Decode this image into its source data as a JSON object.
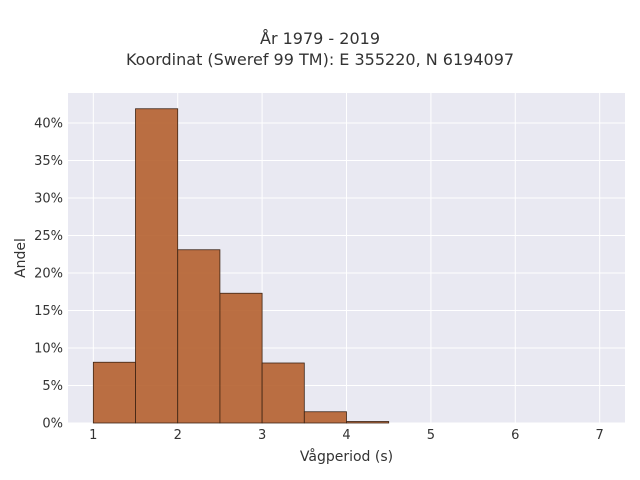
{
  "chart_data": {
    "type": "bar",
    "title": "År 1979 - 2019",
    "subtitle": "Koordinat (Sweref 99 TM): E 355220, N 6194097",
    "xlabel": "Vågperiod (s)",
    "ylabel": "Andel",
    "xlim": [
      0.7,
      7.3
    ],
    "ylim": [
      0,
      44
    ],
    "x_ticks": [
      1,
      2,
      3,
      4,
      5,
      6,
      7
    ],
    "x_tick_labels": [
      "1",
      "2",
      "3",
      "4",
      "5",
      "6",
      "7"
    ],
    "y_ticks": [
      0,
      5,
      10,
      15,
      20,
      25,
      30,
      35,
      40
    ],
    "y_tick_labels": [
      "0%",
      "5%",
      "10%",
      "15%",
      "20%",
      "25%",
      "30%",
      "35%",
      "40%"
    ],
    "bins": [
      [
        1.0,
        1.5
      ],
      [
        1.5,
        2.0
      ],
      [
        2.0,
        2.5
      ],
      [
        2.5,
        3.0
      ],
      [
        3.0,
        3.5
      ],
      [
        3.5,
        4.0
      ],
      [
        4.0,
        4.5
      ]
    ],
    "values": [
      8.1,
      41.9,
      23.1,
      17.3,
      8.0,
      1.5,
      0.2
    ],
    "grid": true,
    "colors": {
      "bar": "#b5602f",
      "bar_edge": "#3d2414",
      "plot_bg": "#e9e9f2",
      "grid": "#ffffff"
    }
  }
}
